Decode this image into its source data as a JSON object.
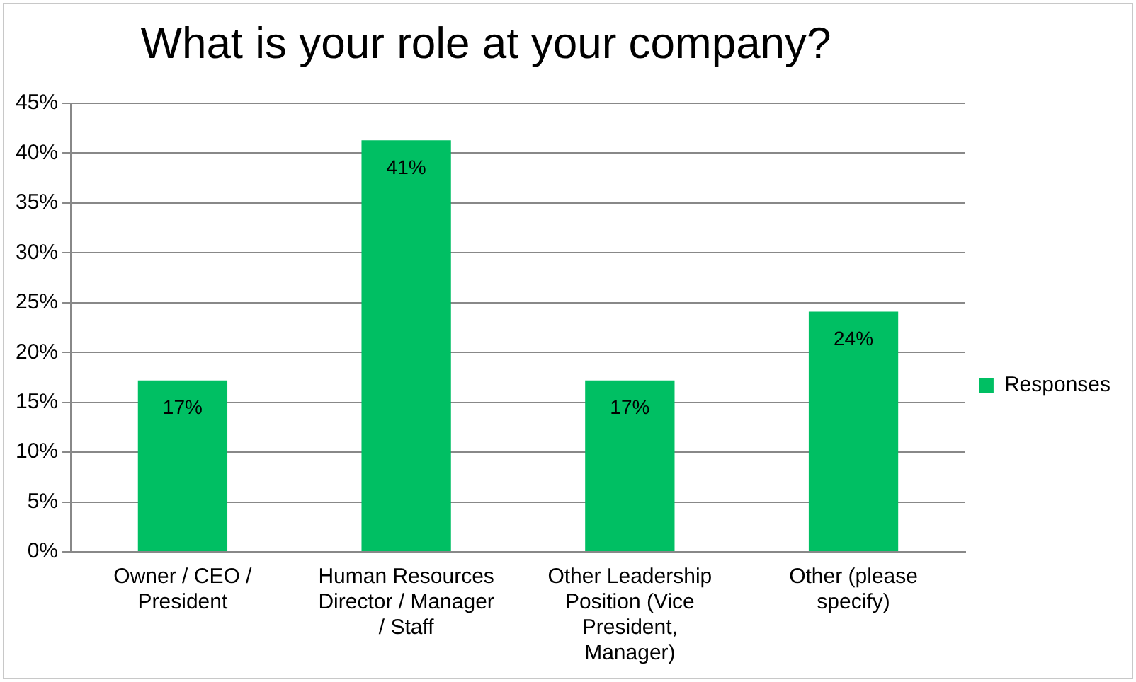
{
  "chart_data": {
    "type": "bar",
    "title": "What is your role at your company?",
    "categories": [
      "Owner / CEO / President",
      "Human Resources Director / Manager / Staff",
      "Other Leadership Position (Vice President, Manager)",
      "Other (please specify)"
    ],
    "series": [
      {
        "name": "Responses",
        "color": "#00bf63",
        "values": [
          17.2,
          41.3,
          17.2,
          24.1
        ],
        "value_labels": [
          "17%",
          "41%",
          "17%",
          "24%"
        ]
      }
    ],
    "ylim": [
      0,
      45
    ],
    "yticks": [
      {
        "value": 0,
        "label": "0%"
      },
      {
        "value": 5,
        "label": "5%"
      },
      {
        "value": 10,
        "label": "10%"
      },
      {
        "value": 15,
        "label": "15%"
      },
      {
        "value": 20,
        "label": "20%"
      },
      {
        "value": 25,
        "label": "25%"
      },
      {
        "value": 30,
        "label": "30%"
      },
      {
        "value": 35,
        "label": "35%"
      },
      {
        "value": 40,
        "label": "40%"
      },
      {
        "value": 45,
        "label": "45%"
      }
    ],
    "grid": "y",
    "legend": "right"
  }
}
